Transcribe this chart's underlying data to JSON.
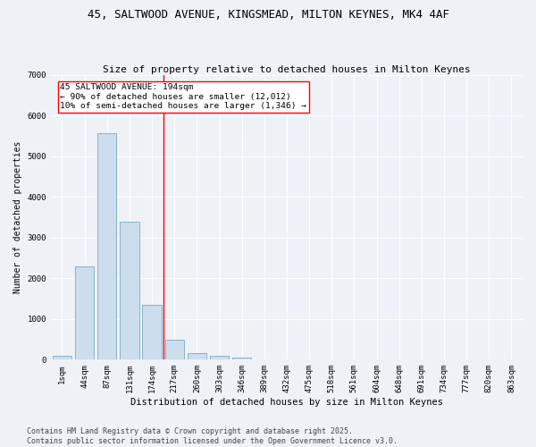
{
  "title_line1": "45, SALTWOOD AVENUE, KINGSMEAD, MILTON KEYNES, MK4 4AF",
  "title_line2": "Size of property relative to detached houses in Milton Keynes",
  "xlabel": "Distribution of detached houses by size in Milton Keynes",
  "ylabel": "Number of detached properties",
  "categories": [
    "1sqm",
    "44sqm",
    "87sqm",
    "131sqm",
    "174sqm",
    "217sqm",
    "260sqm",
    "303sqm",
    "346sqm",
    "389sqm",
    "432sqm",
    "475sqm",
    "518sqm",
    "561sqm",
    "604sqm",
    "648sqm",
    "691sqm",
    "734sqm",
    "777sqm",
    "820sqm",
    "863sqm"
  ],
  "values": [
    100,
    2300,
    5560,
    3400,
    1340,
    500,
    170,
    90,
    55,
    0,
    0,
    0,
    0,
    0,
    0,
    0,
    0,
    0,
    0,
    0,
    0
  ],
  "bar_color": "#ccdded",
  "bar_edge_color": "#7aaabf",
  "vline_x": 4.5,
  "vline_color": "red",
  "annotation_text": "45 SALTWOOD AVENUE: 194sqm\n← 90% of detached houses are smaller (12,012)\n10% of semi-detached houses are larger (1,346) →",
  "annotation_box_color": "white",
  "annotation_box_edge": "red",
  "ylim": [
    0,
    7000
  ],
  "yticks": [
    0,
    1000,
    2000,
    3000,
    4000,
    5000,
    6000,
    7000
  ],
  "bg_color": "#eef2f7",
  "footer": "Contains HM Land Registry data © Crown copyright and database right 2025.\nContains public sector information licensed under the Open Government Licence v3.0.",
  "title_fontsize": 9,
  "subtitle_fontsize": 8,
  "annotation_fontsize": 6.8,
  "footer_fontsize": 6,
  "tick_fontsize": 6.5,
  "ylabel_fontsize": 7,
  "xlabel_fontsize": 7.5
}
